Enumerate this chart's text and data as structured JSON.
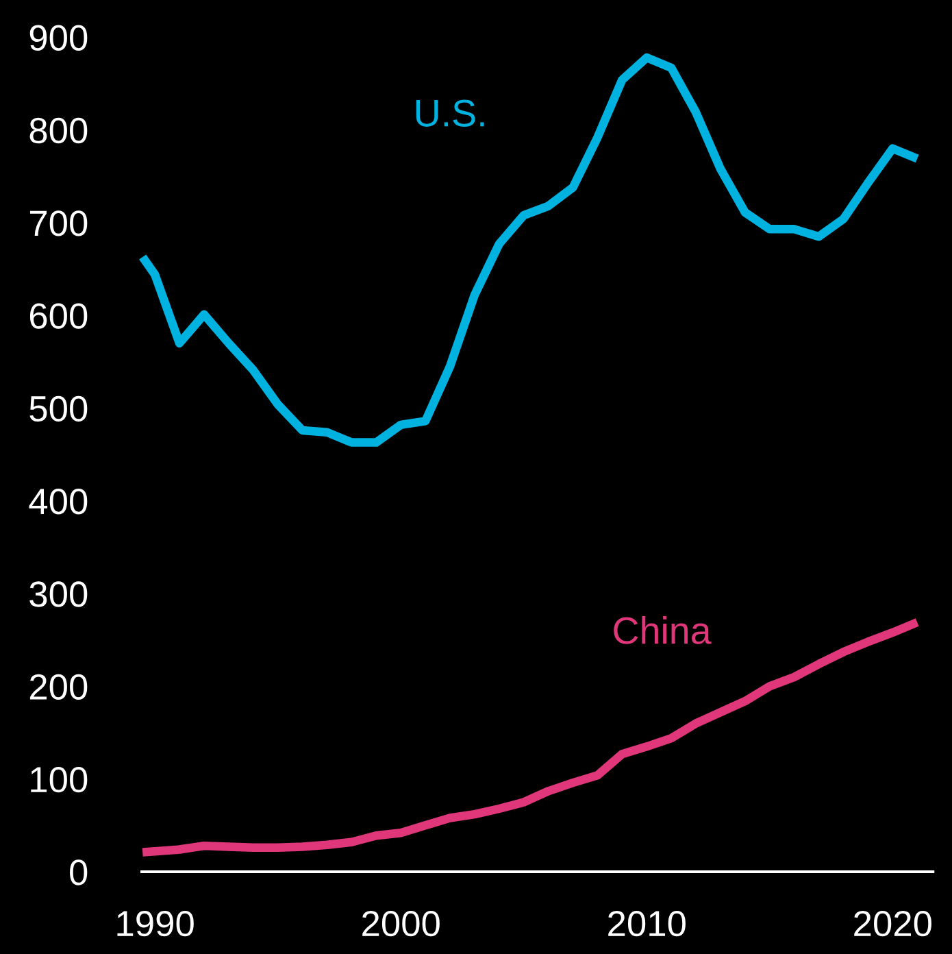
{
  "chart_data": {
    "type": "line",
    "x": [
      1989.5,
      1990,
      1991,
      1992,
      1993,
      1994,
      1995,
      1996,
      1997,
      1998,
      1999,
      2000,
      2001,
      2002,
      2003,
      2004,
      2005,
      2006,
      2007,
      2008,
      2009,
      2010,
      2011,
      2012,
      2013,
      2014,
      2015,
      2016,
      2017,
      2018,
      2019,
      2020,
      2021
    ],
    "series": [
      {
        "name": "U.S.",
        "color": "#00b2e0",
        "values": [
          663,
          644,
          570,
          601,
          570,
          541,
          504,
          476,
          474,
          463,
          463,
          482,
          486,
          545,
          622,
          677,
          708,
          718,
          738,
          792,
          854,
          878,
          867,
          819,
          758,
          711,
          693,
          693,
          685,
          704,
          743,
          780,
          769
        ]
      },
      {
        "name": "China",
        "color": "#e0367a",
        "values": [
          21,
          22,
          24,
          28,
          27,
          26,
          26,
          27,
          29,
          32,
          39,
          42,
          50,
          58,
          62,
          68,
          75,
          87,
          96,
          104,
          127,
          135,
          144,
          160,
          172,
          184,
          200,
          210,
          224,
          237,
          248,
          258,
          269
        ]
      }
    ],
    "xlim": [
      1989.47,
      2021.64
    ],
    "xticks": [
      1990,
      2000,
      2010,
      2020
    ],
    "ylim": [
      0,
      900
    ],
    "yticks": [
      0,
      100,
      200,
      300,
      400,
      500,
      600,
      700,
      800,
      900
    ],
    "grid": false,
    "legend": false,
    "line_style": "solid",
    "marker": "none"
  }
}
